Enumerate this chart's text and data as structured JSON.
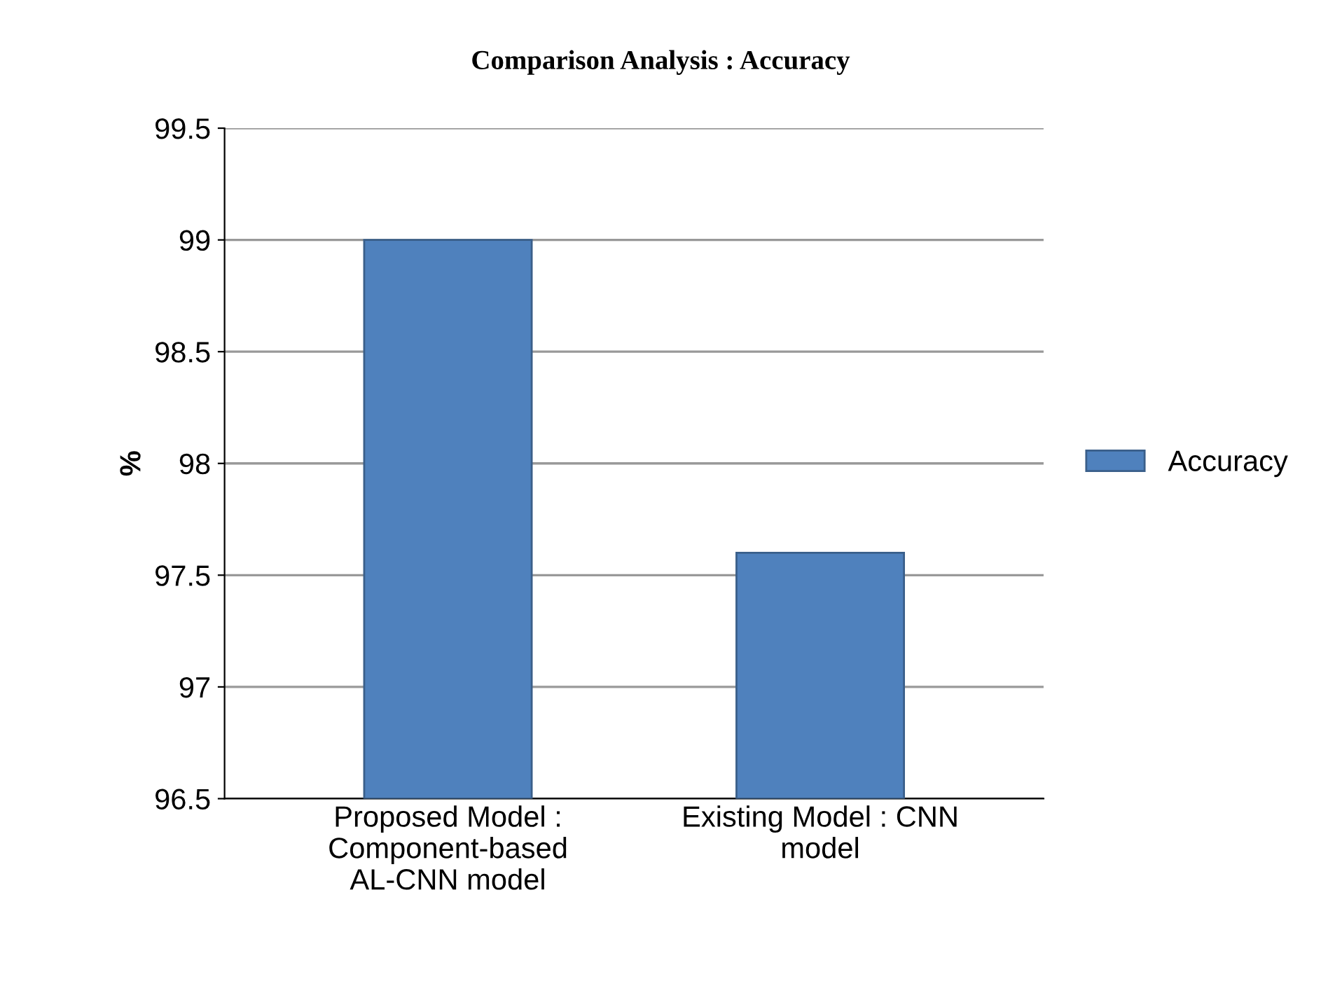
{
  "chart_data": {
    "type": "bar",
    "title": "Comparison Analysis : Accuracy",
    "ylabel": "%",
    "categories": [
      "Proposed Model :\nComponent-based\nAL-CNN model",
      "Existing Model : CNN\nmodel"
    ],
    "series": [
      {
        "name": "Accuracy",
        "color": "#4f81bd",
        "values": [
          99.0,
          97.6
        ]
      }
    ],
    "ylim": [
      96.5,
      99.5
    ],
    "yticks": [
      96.5,
      97,
      97.5,
      98,
      98.5,
      99,
      99.5
    ],
    "grid": "y",
    "legend": "right"
  }
}
